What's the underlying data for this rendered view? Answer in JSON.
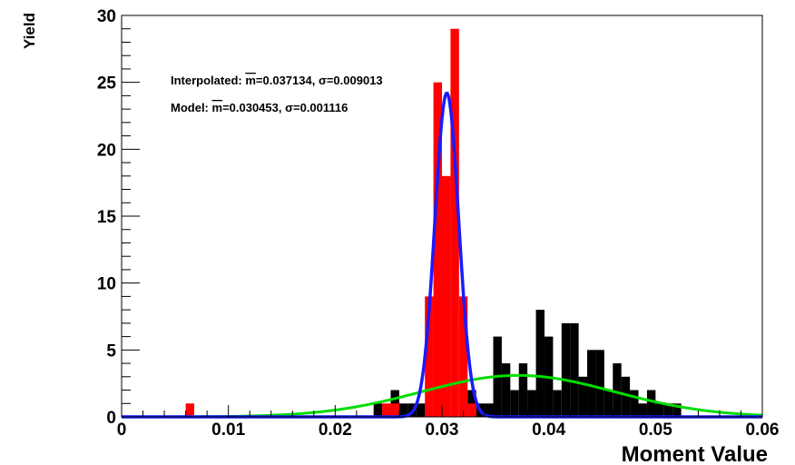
{
  "chart_data": {
    "type": "bar",
    "title": "",
    "xlabel": "Moment Value",
    "ylabel": "Yield",
    "xlim": [
      0,
      0.06
    ],
    "ylim": [
      0,
      30
    ],
    "x_ticks": [
      0,
      0.01,
      0.02,
      0.03,
      0.04,
      0.05,
      0.06
    ],
    "x_tick_labels": [
      "0",
      "0.01",
      "0.02",
      "0.03",
      "0.04",
      "0.05",
      "0.06"
    ],
    "y_ticks": [
      0,
      5,
      10,
      15,
      20,
      25,
      30
    ],
    "y_tick_labels": [
      "0",
      "5",
      "10",
      "15",
      "20",
      "25",
      "30"
    ],
    "grid": false,
    "bin_width": 0.0008,
    "annotations": [
      {
        "prefix": "Interpolated: ",
        "mean_symbol": "m",
        "rest": "=0.037134, σ=0.009013"
      },
      {
        "prefix": "Model: ",
        "mean_symbol": "m",
        "rest": "=0.030453, σ=0.001116"
      }
    ],
    "series": [
      {
        "kind": "histogram",
        "color": "#000000",
        "bins": [
          {
            "x": 0.0236,
            "y": 1
          },
          {
            "x": 0.0252,
            "y": 2
          },
          {
            "x": 0.026,
            "y": 1
          },
          {
            "x": 0.0268,
            "y": 1
          },
          {
            "x": 0.0276,
            "y": 1
          },
          {
            "x": 0.0284,
            "y": 1
          },
          {
            "x": 0.0324,
            "y": 2
          },
          {
            "x": 0.0332,
            "y": 1
          },
          {
            "x": 0.034,
            "y": 1
          },
          {
            "x": 0.0348,
            "y": 6
          },
          {
            "x": 0.0356,
            "y": 4
          },
          {
            "x": 0.0364,
            "y": 2
          },
          {
            "x": 0.0372,
            "y": 4
          },
          {
            "x": 0.038,
            "y": 2
          },
          {
            "x": 0.0388,
            "y": 8
          },
          {
            "x": 0.0396,
            "y": 6
          },
          {
            "x": 0.0404,
            "y": 2
          },
          {
            "x": 0.0412,
            "y": 7
          },
          {
            "x": 0.042,
            "y": 7
          },
          {
            "x": 0.0428,
            "y": 3
          },
          {
            "x": 0.0436,
            "y": 5
          },
          {
            "x": 0.0444,
            "y": 5
          },
          {
            "x": 0.0452,
            "y": 2
          },
          {
            "x": 0.046,
            "y": 4
          },
          {
            "x": 0.0468,
            "y": 3
          },
          {
            "x": 0.0476,
            "y": 2
          },
          {
            "x": 0.0484,
            "y": 1
          },
          {
            "x": 0.0492,
            "y": 2
          },
          {
            "x": 0.05,
            "y": 1
          },
          {
            "x": 0.0508,
            "y": 1
          },
          {
            "x": 0.0516,
            "y": 1
          }
        ]
      },
      {
        "kind": "histogram",
        "color": "#ff0000",
        "bins": [
          {
            "x": 0.006,
            "y": 1
          },
          {
            "x": 0.0244,
            "y": 1
          },
          {
            "x": 0.0252,
            "y": 1
          },
          {
            "x": 0.0284,
            "y": 9
          },
          {
            "x": 0.0292,
            "y": 25
          },
          {
            "x": 0.03,
            "y": 18
          },
          {
            "x": 0.0308,
            "y": 29
          },
          {
            "x": 0.0316,
            "y": 9
          },
          {
            "x": 0.0324,
            "y": 1
          }
        ]
      },
      {
        "kind": "gaussian",
        "color": "#00dd00",
        "mean": 0.037134,
        "sigma": 0.009013,
        "peak": 3.1
      },
      {
        "kind": "gaussian",
        "color": "#1a1aff",
        "mean": 0.030453,
        "sigma": 0.001116,
        "peak": 24.2
      }
    ]
  }
}
